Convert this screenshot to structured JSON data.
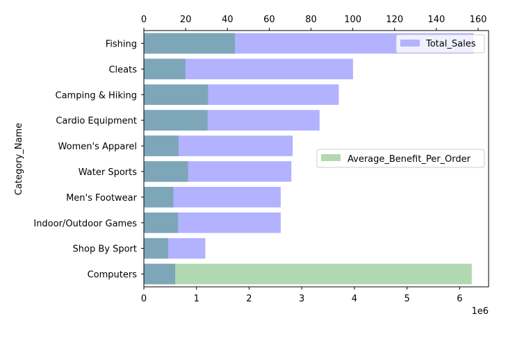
{
  "chart_data": {
    "type": "bar",
    "orientation": "horizontal",
    "ylabel": "Category_Name",
    "categories": [
      "Fishing",
      "Cleats",
      "Camping & Hiking",
      "Cardio Equipment",
      "Women's Apparel",
      "Water Sports",
      "Men's Footwear",
      "Indoor/Outdoor Games",
      "Shop By Sport",
      "Computers"
    ],
    "bottom_axis": {
      "range": [
        0,
        6550000
      ],
      "ticks": [
        0,
        1000000,
        2000000,
        3000000,
        4000000,
        5000000,
        6000000
      ],
      "tick_labels": [
        "0",
        "1",
        "2",
        "3",
        "4",
        "5",
        "6"
      ],
      "offset_label": "1e6"
    },
    "top_axis": {
      "range": [
        0,
        165
      ],
      "ticks": [
        0,
        20,
        40,
        60,
        80,
        100,
        120,
        140,
        160
      ],
      "tick_labels": [
        "0",
        "20",
        "40",
        "60",
        "80",
        "100",
        "120",
        "140",
        "160"
      ]
    },
    "series": [
      {
        "name": "Total_Sales",
        "axis": "top",
        "color": "#b2b2ff",
        "values": [
          157.8,
          100.1,
          93.3,
          84.1,
          71.2,
          70.6,
          65.5,
          65.5,
          29.4,
          0
        ]
      },
      {
        "name": "Average_Benefit_Per_Order",
        "axis": "bottom",
        "color": "#b2d8b2",
        "values": [
          1730000,
          790000,
          1220000,
          1210000,
          660000,
          840000,
          560000,
          650000,
          460000,
          6230000
        ]
      }
    ],
    "overlap_color": "#7ea6b9",
    "computers_top_value": 15.0,
    "legends": [
      {
        "label": "Total_Sales",
        "placement": "top-right"
      },
      {
        "label": "Average_Benefit_Per_Order",
        "placement": "center-right"
      }
    ]
  }
}
